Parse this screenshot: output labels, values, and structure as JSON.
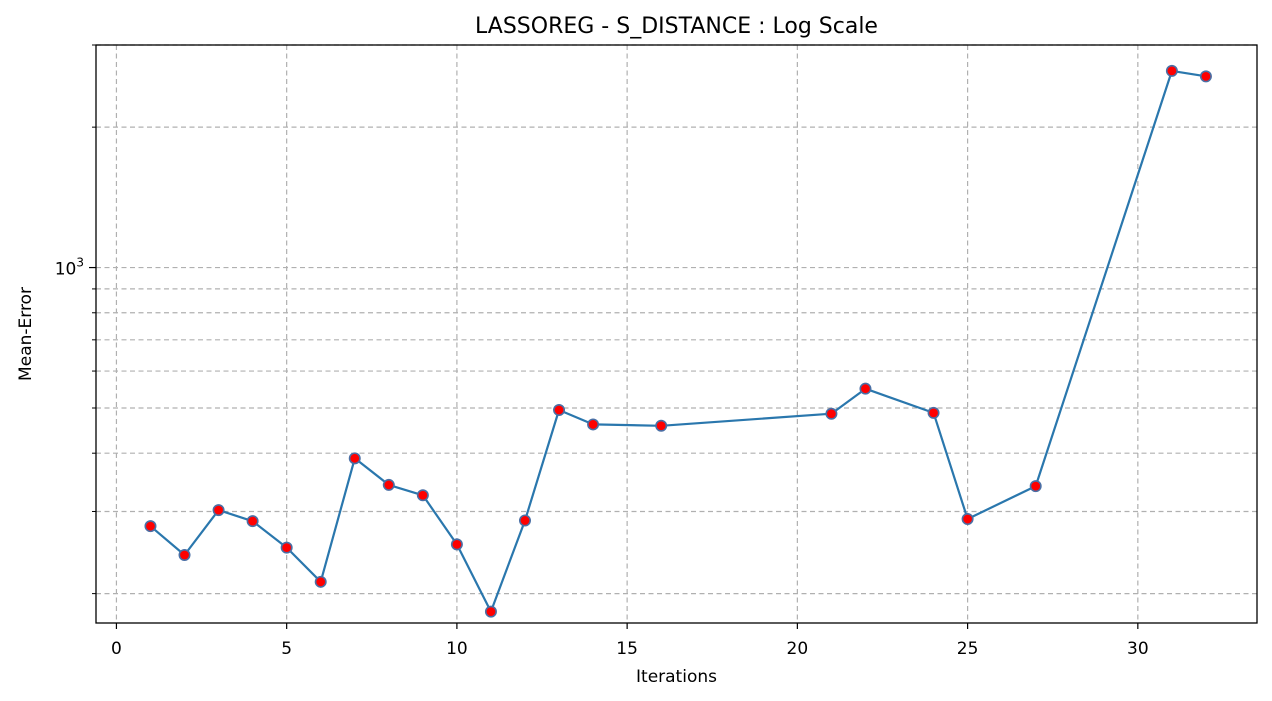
{
  "chart_data": {
    "type": "line",
    "title": "LASSOREG - S_DISTANCE : Log Scale",
    "xlabel": "Iterations",
    "ylabel": "Mean-Error",
    "yscale": "log",
    "grid": true,
    "xlim": [
      -0.6,
      33.5
    ],
    "ylim": [
      173,
      3000
    ],
    "xticks": [
      0,
      5,
      10,
      15,
      20,
      25,
      30
    ],
    "yticks_major": [
      {
        "value": 1000,
        "base": "10",
        "exp": "3"
      }
    ],
    "yticks_minor": [
      200,
      300,
      400,
      500,
      600,
      700,
      800,
      900,
      2000,
      3000
    ],
    "series": [
      {
        "x": [
          1,
          2,
          3,
          4,
          5,
          6,
          7,
          8,
          9,
          10,
          11,
          12,
          13,
          14,
          16,
          21,
          22,
          24,
          25,
          27,
          31,
          32
        ],
        "y": [
          279,
          242,
          302,
          286,
          251,
          212,
          390,
          342,
          325,
          255,
          183,
          287,
          495,
          461,
          458,
          486,
          550,
          488,
          289,
          340,
          2640,
          2570
        ]
      }
    ],
    "line_color": "#2a77ad",
    "marker_face_color": "#ff0000",
    "marker_edge_color": "#4a6fa5"
  }
}
